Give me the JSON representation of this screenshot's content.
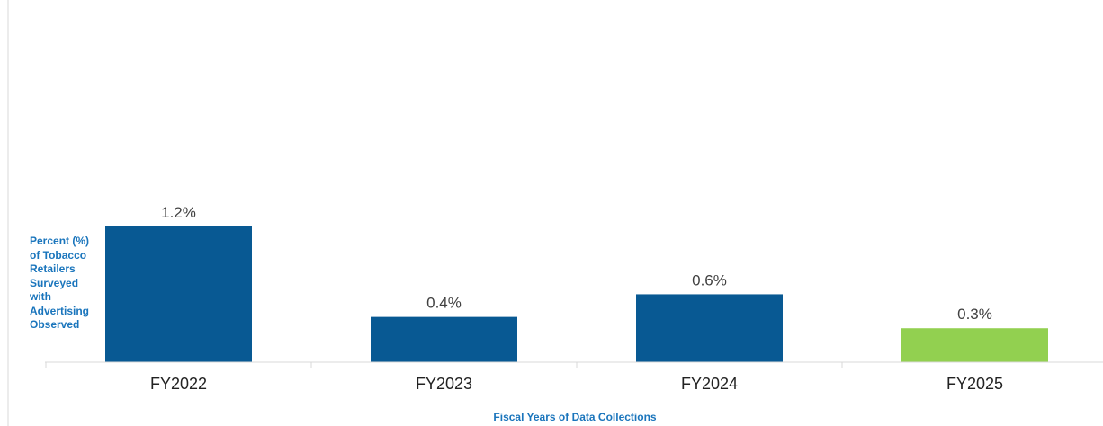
{
  "chart_data": {
    "type": "bar",
    "categories": [
      "FY2022",
      "FY2023",
      "FY2024",
      "FY2025"
    ],
    "values": [
      1.2,
      0.4,
      0.6,
      0.3
    ],
    "data_labels": [
      "1.2%",
      "0.4%",
      "0.6%",
      "0.3%"
    ],
    "bar_colors": [
      "#085993",
      "#085993",
      "#085993",
      "#92d050"
    ],
    "title": "",
    "xlabel": "Fiscal Years of Data Collections",
    "ylabel": "Percent (%) of Tobacco Retailers Surveyed with Advertising Observed",
    "ylabel_lines": [
      "Percent (%)",
      "of Tobacco",
      "Retailers",
      "Surveyed",
      "with",
      "Advertising",
      "Observed"
    ],
    "ylim": [
      0,
      3.2
    ],
    "grid": false,
    "legend": "none"
  }
}
